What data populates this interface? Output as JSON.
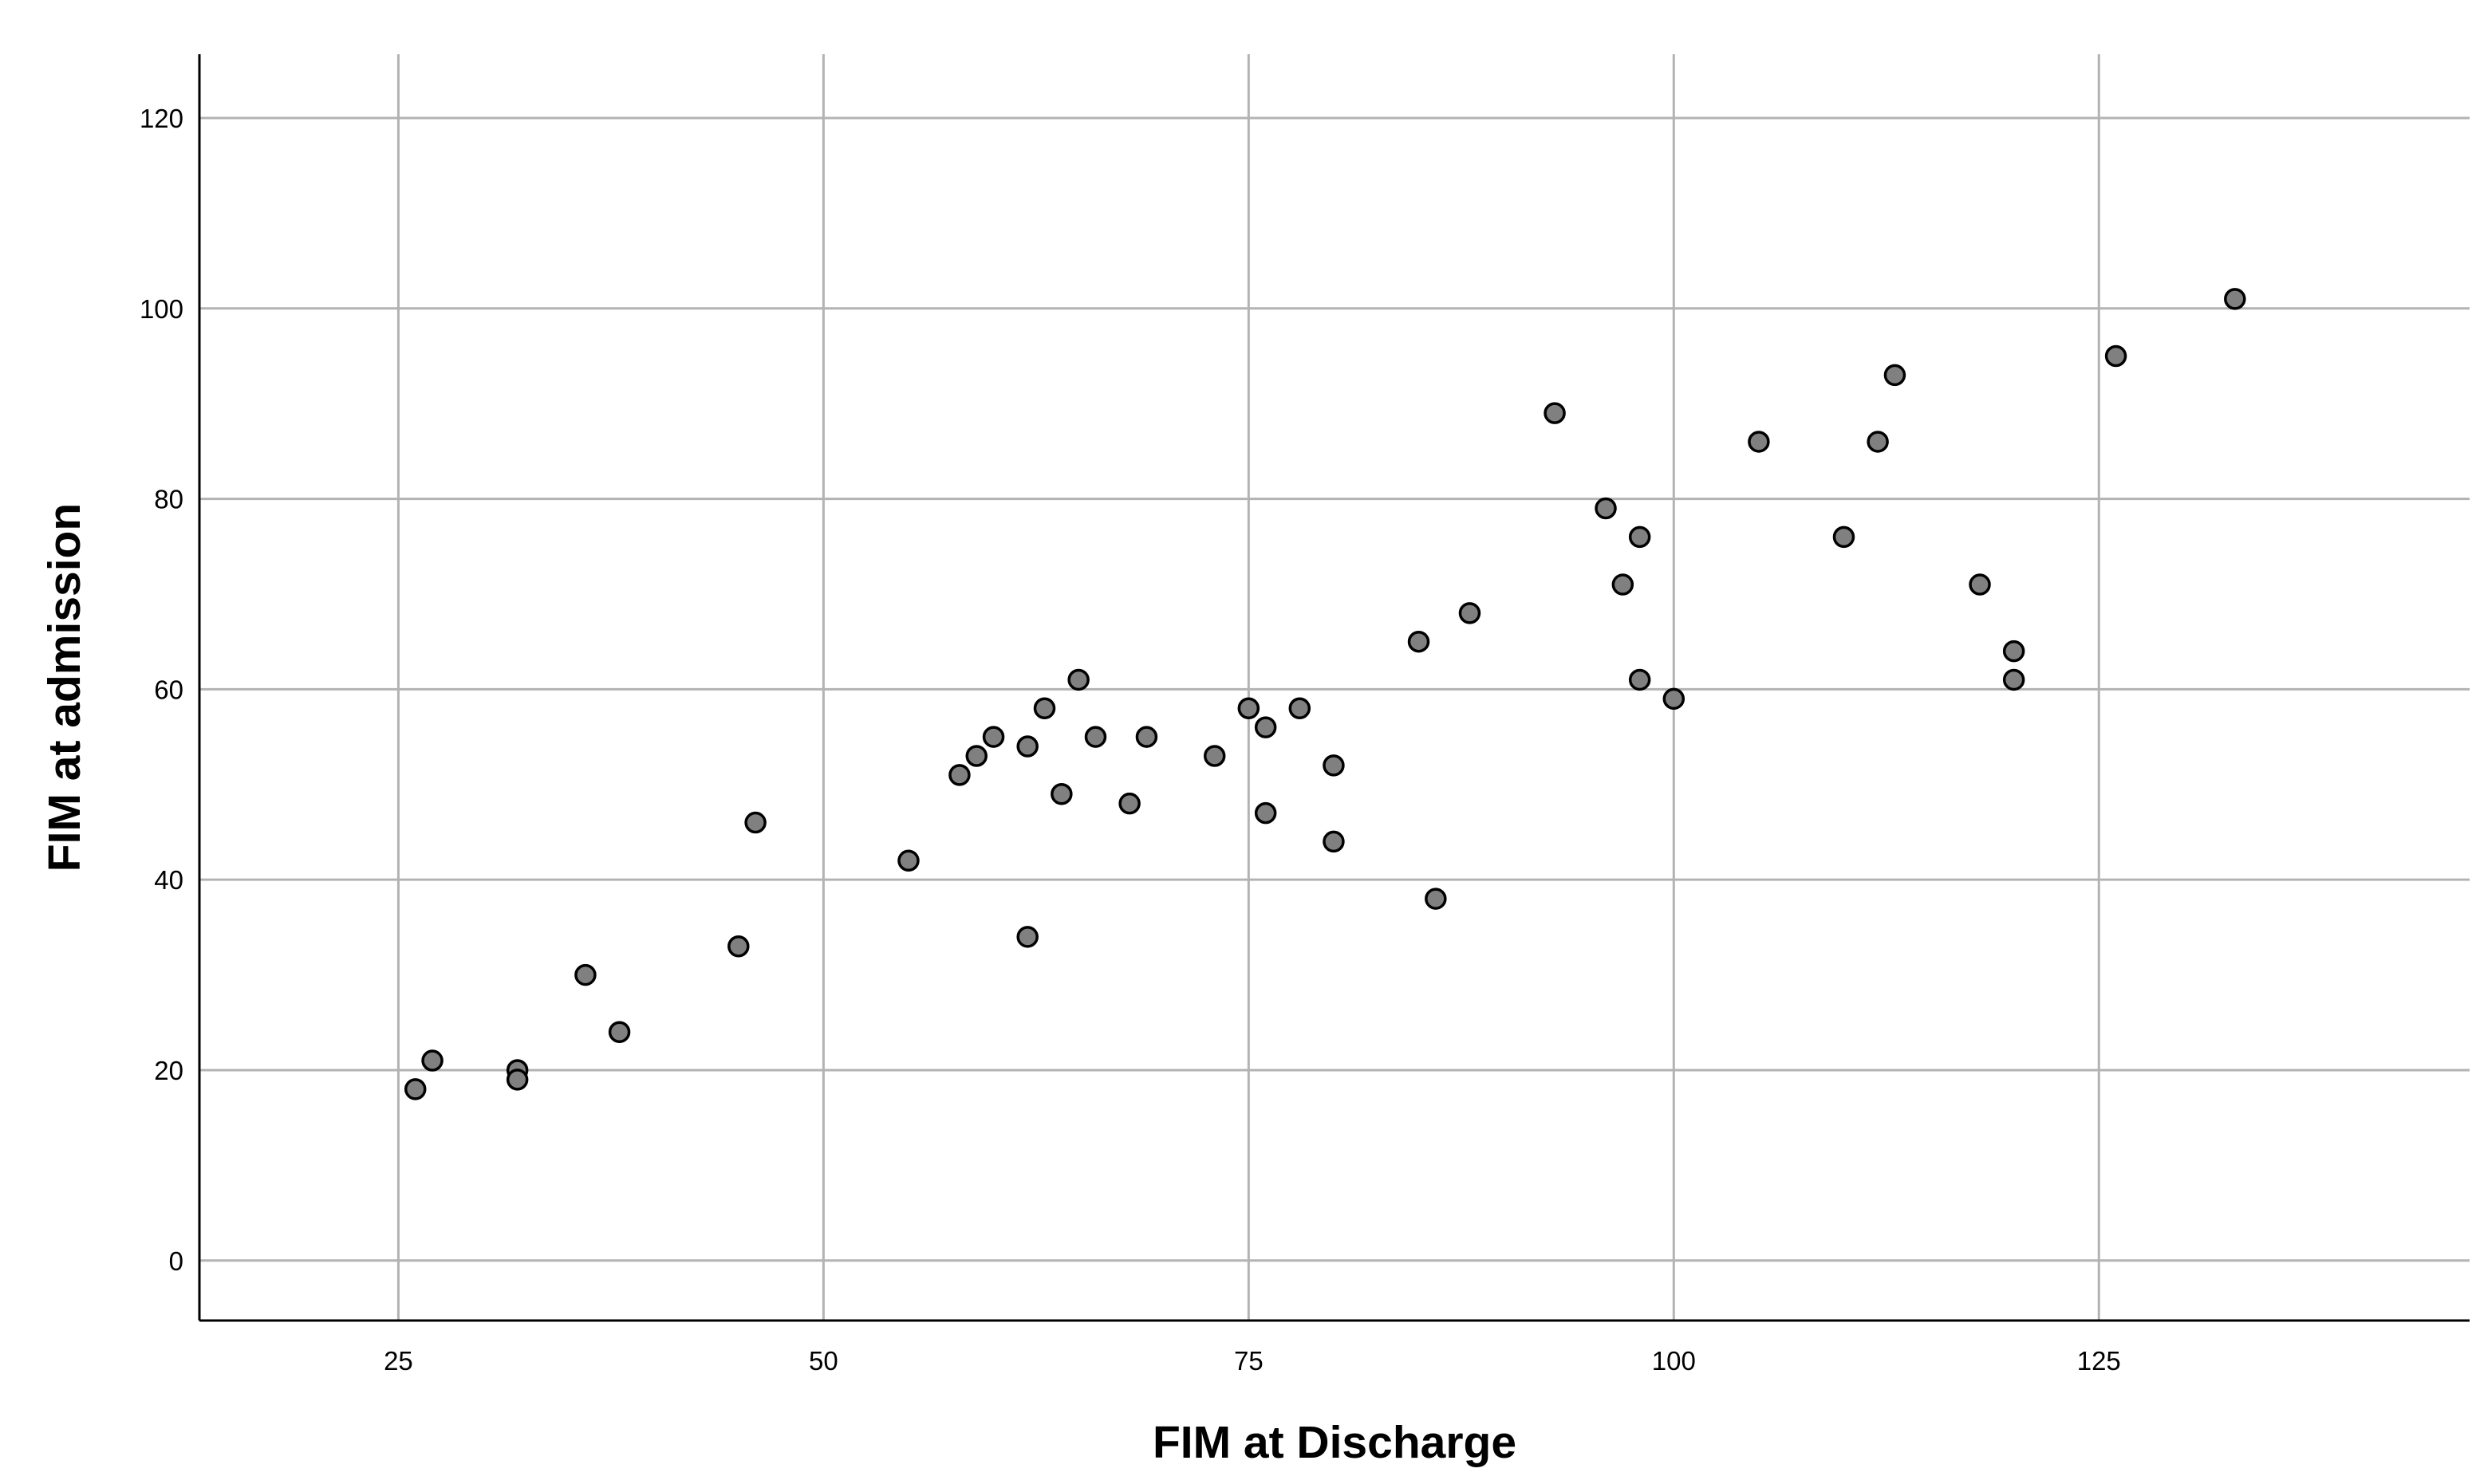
{
  "chart_data": {
    "type": "scatter",
    "xlabel": "FIM at Discharge",
    "ylabel": "FIM at admission",
    "xlim": [
      13.3,
      146.8
    ],
    "ylim": [
      -6.3,
      126.7
    ],
    "x_ticks": [
      25,
      50,
      75,
      100,
      125
    ],
    "y_ticks": [
      0,
      20,
      40,
      60,
      80,
      100,
      120
    ],
    "grid": true,
    "legend": "none",
    "marker_fill": "#808080",
    "marker_edge": "#000000",
    "grid_color": "#b3b3b3",
    "points": [
      {
        "x": 26,
        "y": 18
      },
      {
        "x": 27,
        "y": 21
      },
      {
        "x": 32,
        "y": 20
      },
      {
        "x": 32,
        "y": 19
      },
      {
        "x": 36,
        "y": 30
      },
      {
        "x": 38,
        "y": 24
      },
      {
        "x": 45,
        "y": 33
      },
      {
        "x": 46,
        "y": 46
      },
      {
        "x": 55,
        "y": 42
      },
      {
        "x": 58,
        "y": 51
      },
      {
        "x": 59,
        "y": 53
      },
      {
        "x": 60,
        "y": 55
      },
      {
        "x": 62,
        "y": 54
      },
      {
        "x": 62,
        "y": 34
      },
      {
        "x": 63,
        "y": 58
      },
      {
        "x": 64,
        "y": 49
      },
      {
        "x": 65,
        "y": 61
      },
      {
        "x": 66,
        "y": 55
      },
      {
        "x": 68,
        "y": 48
      },
      {
        "x": 69,
        "y": 55
      },
      {
        "x": 73,
        "y": 53
      },
      {
        "x": 75,
        "y": 58
      },
      {
        "x": 76,
        "y": 56
      },
      {
        "x": 76,
        "y": 47
      },
      {
        "x": 78,
        "y": 58
      },
      {
        "x": 80,
        "y": 52
      },
      {
        "x": 80,
        "y": 44
      },
      {
        "x": 85,
        "y": 65
      },
      {
        "x": 86,
        "y": 38
      },
      {
        "x": 88,
        "y": 68
      },
      {
        "x": 93,
        "y": 89
      },
      {
        "x": 96,
        "y": 79
      },
      {
        "x": 97,
        "y": 71
      },
      {
        "x": 98,
        "y": 76
      },
      {
        "x": 98,
        "y": 61
      },
      {
        "x": 100,
        "y": 59
      },
      {
        "x": 105,
        "y": 86
      },
      {
        "x": 110,
        "y": 76
      },
      {
        "x": 112,
        "y": 86
      },
      {
        "x": 113,
        "y": 93
      },
      {
        "x": 118,
        "y": 71
      },
      {
        "x": 120,
        "y": 64
      },
      {
        "x": 120,
        "y": 61
      },
      {
        "x": 126,
        "y": 95
      },
      {
        "x": 133,
        "y": 101
      }
    ]
  }
}
